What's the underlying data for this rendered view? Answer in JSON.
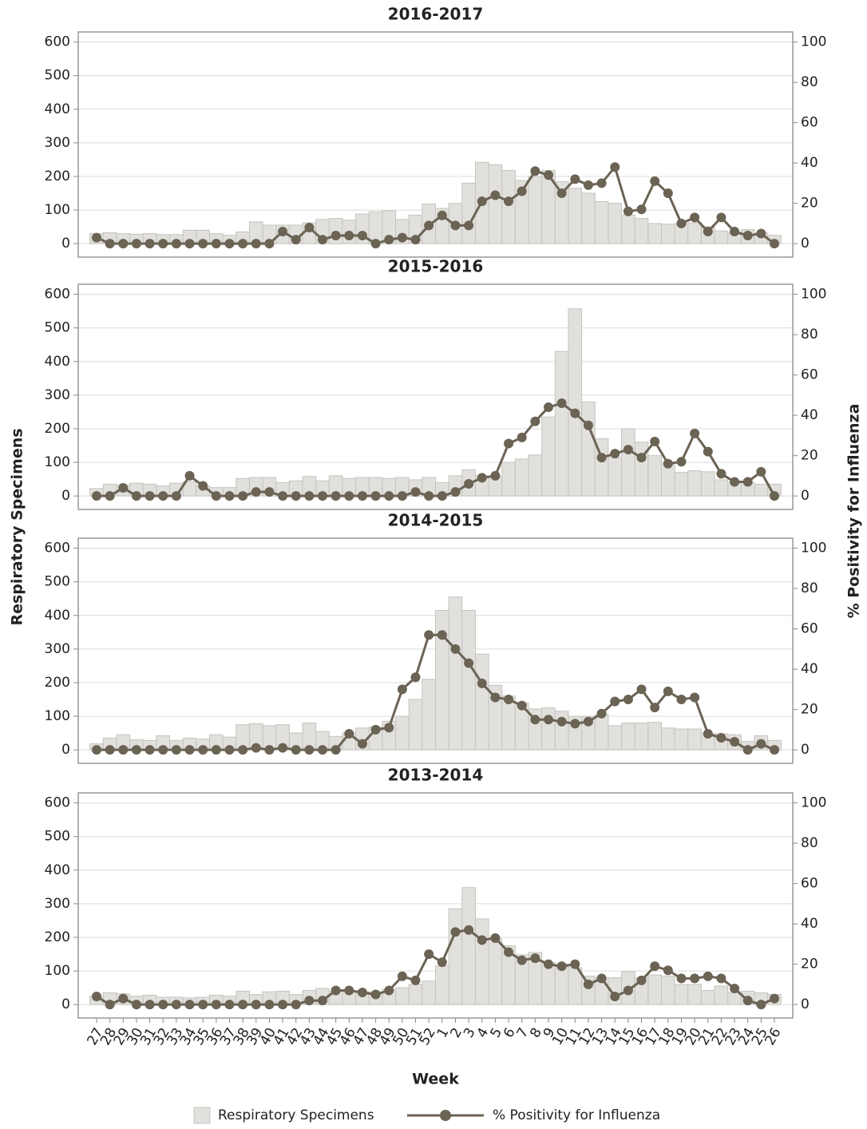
{
  "chart_data": [
    {
      "type": "bar",
      "title": "2016-2017",
      "ylabel": "Respiratory Specimens",
      "y2label": "% Positivity for Influenza",
      "ylim": [
        -40,
        630
      ],
      "yticks": [
        0,
        100,
        200,
        300,
        400,
        500,
        600
      ],
      "y2lim": [
        -6.67,
        105
      ],
      "y2ticks": [
        0,
        20,
        40,
        60,
        80,
        100
      ],
      "grid": true,
      "series": [
        {
          "color": "#e1e0dc",
          "values": [
            30,
            33,
            30,
            28,
            30,
            27,
            27,
            40,
            40,
            30,
            25,
            35,
            65,
            55,
            55,
            55,
            62,
            72,
            75,
            70,
            88,
            95,
            98,
            72,
            85,
            118,
            105,
            120,
            180,
            242,
            235,
            218,
            188,
            200,
            218,
            185,
            165,
            150,
            125,
            120,
            85,
            75,
            60,
            58,
            60,
            62,
            50,
            38,
            32,
            42,
            32,
            25
          ]
        },
        {
          "type": "line",
          "axis": "y2",
          "color": "#6b6354",
          "values": [
            3,
            0,
            0,
            0,
            0,
            0,
            0,
            0,
            0,
            0,
            0,
            0,
            0,
            0,
            6,
            2,
            8,
            2,
            4,
            4,
            4,
            0,
            2,
            3,
            2,
            9,
            14,
            9,
            9,
            21,
            24,
            21,
            26,
            36,
            34,
            25,
            32,
            29,
            30,
            38,
            16,
            17,
            31,
            25,
            10,
            13,
            6,
            13,
            6,
            4,
            5,
            0
          ]
        }
      ]
    },
    {
      "type": "bar",
      "title": "2015-2016",
      "ylim": [
        -40,
        630
      ],
      "yticks": [
        0,
        100,
        200,
        300,
        400,
        500,
        600
      ],
      "y2lim": [
        -6.67,
        105
      ],
      "y2ticks": [
        0,
        20,
        40,
        60,
        80,
        100
      ],
      "grid": true,
      "series": [
        {
          "color": "#e1e0dc",
          "values": [
            22,
            35,
            32,
            38,
            35,
            30,
            38,
            42,
            30,
            25,
            25,
            52,
            55,
            55,
            40,
            45,
            58,
            45,
            60,
            52,
            55,
            55,
            52,
            55,
            48,
            55,
            40,
            60,
            78,
            60,
            58,
            100,
            110,
            122,
            235,
            430,
            557,
            280,
            170,
            115,
            200,
            160,
            120,
            100,
            70,
            75,
            72,
            48,
            40,
            40,
            35,
            35
          ]
        },
        {
          "type": "line",
          "axis": "y2",
          "color": "#6b6354",
          "values": [
            0,
            0,
            4,
            0,
            0,
            0,
            0,
            10,
            5,
            0,
            0,
            0,
            2,
            2,
            0,
            0,
            0,
            0,
            0,
            0,
            0,
            0,
            0,
            0,
            2,
            0,
            0,
            2,
            6,
            9,
            10,
            26,
            29,
            37,
            44,
            46,
            41,
            35,
            19,
            21,
            23,
            19,
            27,
            16,
            17,
            31,
            22,
            11,
            7,
            7,
            12,
            0
          ]
        }
      ]
    },
    {
      "type": "bar",
      "title": "2014-2015",
      "ylim": [
        -40,
        630
      ],
      "yticks": [
        0,
        100,
        200,
        300,
        400,
        500,
        600
      ],
      "y2lim": [
        -6.67,
        105
      ],
      "y2ticks": [
        0,
        20,
        40,
        60,
        80,
        100
      ],
      "grid": true,
      "series": [
        {
          "color": "#e1e0dc",
          "values": [
            18,
            35,
            45,
            30,
            28,
            42,
            28,
            35,
            32,
            45,
            38,
            75,
            78,
            72,
            75,
            50,
            80,
            55,
            40,
            50,
            65,
            68,
            85,
            100,
            150,
            210,
            415,
            455,
            415,
            285,
            192,
            160,
            140,
            122,
            125,
            115,
            100,
            100,
            105,
            72,
            80,
            80,
            82,
            65,
            62,
            62,
            48,
            48,
            45,
            25,
            42,
            28
          ]
        },
        {
          "type": "line",
          "axis": "y2",
          "color": "#6b6354",
          "values": [
            0,
            0,
            0,
            0,
            0,
            0,
            0,
            0,
            0,
            0,
            0,
            0,
            1,
            0,
            1,
            0,
            0,
            0,
            0,
            8,
            3,
            10,
            11,
            30,
            36,
            57,
            57,
            50,
            43,
            33,
            26,
            25,
            22,
            15,
            15,
            14,
            13,
            14,
            18,
            24,
            25,
            30,
            21,
            29,
            25,
            26,
            8,
            6,
            4,
            0,
            3,
            0
          ]
        }
      ]
    },
    {
      "type": "bar",
      "title": "2013-2014",
      "xlabel": "Week",
      "categories": [
        "27",
        "28",
        "29",
        "30",
        "31",
        "32",
        "33",
        "34",
        "35",
        "36",
        "37",
        "38",
        "39",
        "40",
        "41",
        "42",
        "43",
        "44",
        "45",
        "46",
        "47",
        "48",
        "49",
        "50",
        "51",
        "52",
        "1",
        "2",
        "3",
        "4",
        "5",
        "6",
        "7",
        "8",
        "9",
        "10",
        "11",
        "12",
        "13",
        "14",
        "15",
        "16",
        "17",
        "18",
        "19",
        "20",
        "21",
        "22",
        "23",
        "24",
        "25",
        "26"
      ],
      "ylim": [
        -40,
        630
      ],
      "yticks": [
        0,
        100,
        200,
        300,
        400,
        500,
        600
      ],
      "y2lim": [
        -6.67,
        105
      ],
      "y2ticks": [
        0,
        20,
        40,
        60,
        80,
        100
      ],
      "grid": true,
      "series": [
        {
          "name": "Respiratory Specimens",
          "color": "#e1e0dc",
          "values": [
            25,
            35,
            32,
            25,
            28,
            22,
            22,
            20,
            22,
            28,
            25,
            40,
            30,
            38,
            40,
            30,
            42,
            48,
            40,
            40,
            38,
            38,
            45,
            50,
            60,
            70,
            115,
            285,
            348,
            255,
            195,
            175,
            148,
            155,
            125,
            120,
            110,
            85,
            80,
            80,
            98,
            80,
            88,
            85,
            60,
            60,
            42,
            55,
            35,
            40,
            35,
            30
          ]
        },
        {
          "name": "% Positivity for Influenza",
          "type": "line",
          "axis": "y2",
          "color": "#6b6354",
          "values": [
            4,
            0,
            3,
            0,
            0,
            0,
            0,
            0,
            0,
            0,
            0,
            0,
            0,
            0,
            0,
            0,
            2,
            2,
            7,
            7,
            6,
            5,
            7,
            14,
            12,
            25,
            21,
            36,
            37,
            32,
            33,
            26,
            22,
            23,
            20,
            19,
            20,
            10,
            13,
            4,
            7,
            12,
            19,
            17,
            13,
            13,
            14,
            13,
            8,
            2,
            0,
            3
          ]
        }
      ]
    }
  ]
}
